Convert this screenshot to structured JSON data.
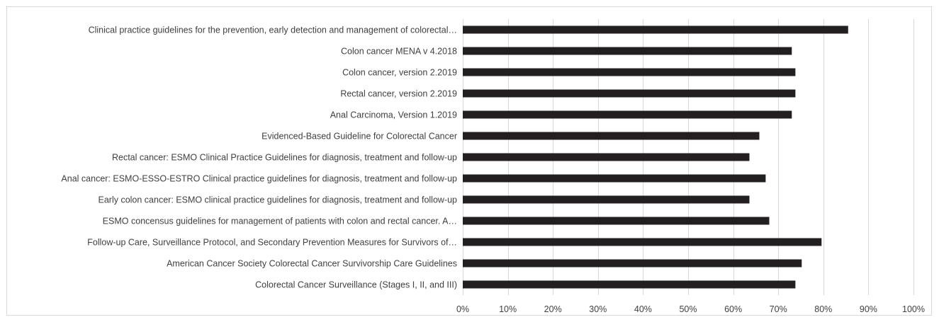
{
  "chart_data": {
    "type": "bar",
    "orientation": "horizontal",
    "categories": [
      "Clinical practice guidelines for the prevention, early detection and management of colorectal…",
      "Colon cancer MENA v 4.2018",
      "Colon cancer, version 2.2019",
      "Rectal cancer, version 2.2019",
      "Anal Carcinoma, Version 1.2019",
      "Evidenced-Based Guideline for Colorectal Cancer",
      "Rectal cancer: ESMO Clinical Practice Guidelines for diagnosis, treatment and follow-up",
      "Anal cancer: ESMO-ESSO-ESTRO Clinical practice guidelines for diagnosis, treatment and follow-up",
      "Early colon cancer: ESMO clinical practice guidelines for diagnosis, treatment and follow-up",
      "ESMO concensus guidelines for management of patients with colon and rectal cancer. A…",
      "Follow-up Care, Surveillance Protocol, and Secondary Prevention Measures for Survivors of…",
      "American Cancer Society Colorectal Cancer Survivorship Care Guidelines",
      "Colorectal Cancer Surveillance  (Stages I, II, and III)"
    ],
    "values": [
      85.5,
      73,
      73.8,
      73.8,
      73,
      65.8,
      63.6,
      67.2,
      63.6,
      68,
      79.6,
      75.2,
      73.8
    ],
    "xlim": [
      0,
      100
    ],
    "x_ticks": [
      "0%",
      "10%",
      "20%",
      "30%",
      "40%",
      "50%",
      "60%",
      "70%",
      "80%",
      "90%",
      "100%"
    ],
    "grid": true,
    "bar_color": "#231f20",
    "title": "",
    "xlabel": "",
    "ylabel": ""
  }
}
